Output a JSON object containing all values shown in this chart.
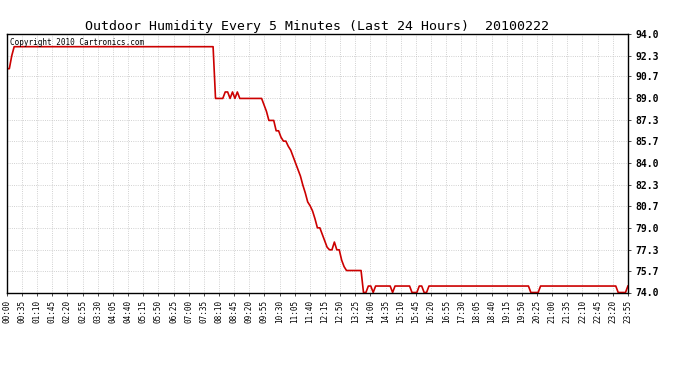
{
  "title": "Outdoor Humidity Every 5 Minutes (Last 24 Hours)  20100222",
  "copyright_text": "Copyright 2010 Cartronics.com",
  "line_color": "#cc0000",
  "bg_color": "#ffffff",
  "grid_color": "#bbbbbb",
  "ylim": [
    74.0,
    94.0
  ],
  "yticks": [
    74.0,
    75.7,
    77.3,
    79.0,
    80.7,
    82.3,
    84.0,
    85.7,
    87.3,
    89.0,
    90.7,
    92.3,
    94.0
  ],
  "xtick_labels": [
    "00:00",
    "00:35",
    "01:10",
    "01:45",
    "02:20",
    "02:55",
    "03:30",
    "04:05",
    "04:40",
    "05:15",
    "05:50",
    "06:25",
    "07:00",
    "07:35",
    "08:10",
    "08:45",
    "09:20",
    "09:55",
    "10:30",
    "11:05",
    "11:40",
    "12:15",
    "12:50",
    "13:25",
    "14:00",
    "14:35",
    "15:10",
    "15:45",
    "16:20",
    "16:55",
    "17:30",
    "18:05",
    "18:40",
    "19:15",
    "19:50",
    "20:25",
    "21:00",
    "21:35",
    "22:10",
    "22:45",
    "23:20",
    "23:55"
  ],
  "humidity_data": [
    91.3,
    91.3,
    92.3,
    93.0,
    93.0,
    93.0,
    93.0,
    93.0,
    93.0,
    93.0,
    93.0,
    93.0,
    93.0,
    93.0,
    93.0,
    93.0,
    93.0,
    93.0,
    93.0,
    93.0,
    93.0,
    93.0,
    93.0,
    93.0,
    93.0,
    93.0,
    93.0,
    93.0,
    93.0,
    93.0,
    93.0,
    93.0,
    93.0,
    93.0,
    93.0,
    93.0,
    93.0,
    93.0,
    93.0,
    93.0,
    93.0,
    93.0,
    93.0,
    93.0,
    93.0,
    93.0,
    93.0,
    93.0,
    93.0,
    93.0,
    93.0,
    93.0,
    93.0,
    93.0,
    93.0,
    93.0,
    93.0,
    93.0,
    93.0,
    93.0,
    93.0,
    93.0,
    93.0,
    93.0,
    93.0,
    93.0,
    93.0,
    93.0,
    93.0,
    93.0,
    93.0,
    93.0,
    93.0,
    93.0,
    93.0,
    93.0,
    93.0,
    93.0,
    93.0,
    93.0,
    93.0,
    93.0,
    93.0,
    93.0,
    93.0,
    93.0,
    89.0,
    89.0,
    89.0,
    89.0,
    89.5,
    89.5,
    89.0,
    89.5,
    89.0,
    89.5,
    89.0,
    89.0,
    89.0,
    89.0,
    89.0,
    89.0,
    89.0,
    89.0,
    89.0,
    89.0,
    88.5,
    88.0,
    87.3,
    87.3,
    87.3,
    86.5,
    86.5,
    86.0,
    85.7,
    85.7,
    85.3,
    85.0,
    84.5,
    84.0,
    83.5,
    83.0,
    82.3,
    81.7,
    81.0,
    80.7,
    80.3,
    79.7,
    79.0,
    79.0,
    78.5,
    78.0,
    77.5,
    77.3,
    77.3,
    77.9,
    77.3,
    77.3,
    76.5,
    76.0,
    75.7,
    75.7,
    75.7,
    75.7,
    75.7,
    75.7,
    75.7,
    74.0,
    74.0,
    74.5,
    74.5,
    74.0,
    74.5,
    74.5,
    74.5,
    74.5,
    74.5,
    74.5,
    74.5,
    74.0,
    74.5,
    74.5,
    74.5,
    74.5,
    74.5,
    74.5,
    74.5,
    74.0,
    74.0,
    74.0,
    74.5,
    74.5,
    74.0,
    74.0,
    74.5,
    74.5,
    74.5,
    74.5,
    74.5,
    74.5,
    74.5,
    74.5,
    74.5,
    74.5,
    74.5,
    74.5,
    74.5,
    74.5,
    74.5,
    74.5,
    74.5,
    74.5,
    74.5,
    74.5,
    74.5,
    74.5,
    74.5,
    74.5,
    74.5,
    74.5,
    74.5,
    74.5,
    74.5,
    74.5,
    74.5,
    74.5,
    74.5,
    74.5,
    74.5,
    74.5,
    74.5,
    74.5,
    74.5,
    74.5,
    74.5,
    74.5,
    74.0,
    74.0,
    74.0,
    74.0,
    74.5,
    74.5,
    74.5,
    74.5,
    74.5,
    74.5,
    74.5,
    74.5,
    74.5,
    74.5,
    74.5,
    74.5,
    74.5,
    74.5,
    74.5,
    74.5,
    74.5,
    74.5,
    74.5,
    74.5,
    74.5,
    74.5,
    74.5,
    74.5,
    74.5,
    74.5,
    74.5,
    74.5,
    74.5,
    74.5,
    74.5,
    74.5,
    74.0,
    74.0,
    74.0,
    74.0,
    74.5
  ],
  "fig_width": 6.9,
  "fig_height": 3.75,
  "dpi": 100
}
